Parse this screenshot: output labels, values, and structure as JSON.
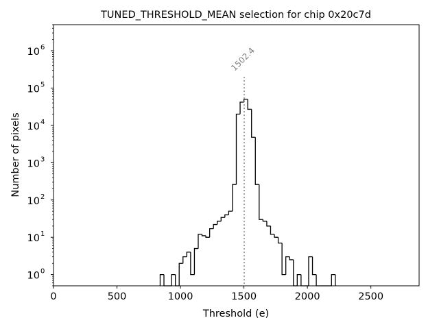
{
  "chart_data": {
    "type": "histogram",
    "title": "TUNED_THRESHOLD_MEAN selection for chip 0x20c7d",
    "xlabel": "Threshold (e)",
    "ylabel": "Number of pixels",
    "xlim": [
      0,
      2880
    ],
    "ylim": [
      0.5,
      5000000
    ],
    "yscale": "log",
    "grid": false,
    "x_ticks": [
      {
        "value": 0,
        "label": "0"
      },
      {
        "value": 500,
        "label": "500"
      },
      {
        "value": 1000,
        "label": "1000"
      },
      {
        "value": 1500,
        "label": "1500"
      },
      {
        "value": 2000,
        "label": "2000"
      },
      {
        "value": 2500,
        "label": "2500"
      }
    ],
    "y_ticks": [
      {
        "exp": 0,
        "label": "10",
        "sup": "0"
      },
      {
        "exp": 1,
        "label": "10",
        "sup": "1"
      },
      {
        "exp": 2,
        "label": "10",
        "sup": "2"
      },
      {
        "exp": 3,
        "label": "10",
        "sup": "3"
      },
      {
        "exp": 4,
        "label": "10",
        "sup": "4"
      },
      {
        "exp": 5,
        "label": "10",
        "sup": "5"
      },
      {
        "exp": 6,
        "label": "10",
        "sup": "6"
      }
    ],
    "marker": {
      "value": 1502.4,
      "label": "1502.4",
      "y_top": 200000
    },
    "bin_width": 30,
    "bins": [
      [
        840,
        1
      ],
      [
        870,
        0
      ],
      [
        900,
        0
      ],
      [
        930,
        1
      ],
      [
        960,
        0
      ],
      [
        990,
        2
      ],
      [
        1020,
        3
      ],
      [
        1050,
        4
      ],
      [
        1080,
        1
      ],
      [
        1110,
        5
      ],
      [
        1140,
        12
      ],
      [
        1170,
        11
      ],
      [
        1200,
        10
      ],
      [
        1230,
        17
      ],
      [
        1260,
        22
      ],
      [
        1290,
        27
      ],
      [
        1320,
        34
      ],
      [
        1350,
        40
      ],
      [
        1380,
        50
      ],
      [
        1410,
        260
      ],
      [
        1440,
        20000
      ],
      [
        1470,
        42000
      ],
      [
        1500,
        50000
      ],
      [
        1530,
        27000
      ],
      [
        1560,
        4800
      ],
      [
        1590,
        260
      ],
      [
        1620,
        30
      ],
      [
        1650,
        27
      ],
      [
        1680,
        20
      ],
      [
        1710,
        12
      ],
      [
        1740,
        10
      ],
      [
        1770,
        7
      ],
      [
        1800,
        1
      ],
      [
        1830,
        3
      ],
      [
        1860,
        2.5
      ],
      [
        1890,
        0
      ],
      [
        1920,
        1
      ],
      [
        1950,
        0
      ],
      [
        1980,
        0
      ],
      [
        2010,
        3
      ],
      [
        2040,
        1
      ],
      [
        2070,
        0
      ],
      [
        2100,
        0
      ],
      [
        2130,
        0
      ],
      [
        2160,
        0
      ],
      [
        2190,
        1
      ]
    ],
    "colors": {
      "histogram": "#000000",
      "marker": "#808080",
      "marker_label": "#808080"
    }
  }
}
